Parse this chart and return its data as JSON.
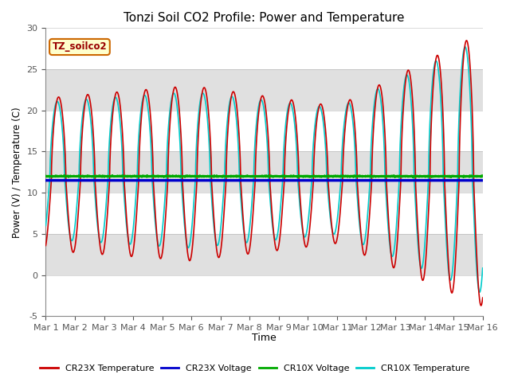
{
  "title": "Tonzi Soil CO2 Profile: Power and Temperature",
  "ylabel": "Power (V) / Temperature (C)",
  "xlabel": "Time",
  "ylim": [
    -5,
    30
  ],
  "xlim": [
    0,
    15
  ],
  "xtick_labels": [
    "Mar 1",
    "Mar 2",
    "Mar 3",
    "Mar 4",
    "Mar 5",
    "Mar 6",
    "Mar 7",
    "Mar 8",
    "Mar 9",
    "Mar 10",
    "Mar 11",
    "Mar 12",
    "Mar 13",
    "Mar 14",
    "Mar 15",
    "Mar 16"
  ],
  "ytick_vals": [
    -5,
    0,
    5,
    10,
    15,
    20,
    25,
    30
  ],
  "cr23x_voltage_val": 11.5,
  "cr10x_voltage_val": 12.0,
  "tag_text": "TZ_soilco2",
  "tag_bg": "#ffffcc",
  "tag_edge": "#cc6600",
  "bg_band_color_light": "#f5f5f5",
  "bg_band_color_dark": "#e0e0e0",
  "plot_bg": "#f0f0f0",
  "colors": {
    "cr23x_temp": "#cc0000",
    "cr23x_volt": "#0000cc",
    "cr10x_volt": "#00aa00",
    "cr10x_temp": "#00cccc"
  },
  "legend_labels": [
    "CR23X Temperature",
    "CR23X Voltage",
    "CR10X Voltage",
    "CR10X Temperature"
  ]
}
